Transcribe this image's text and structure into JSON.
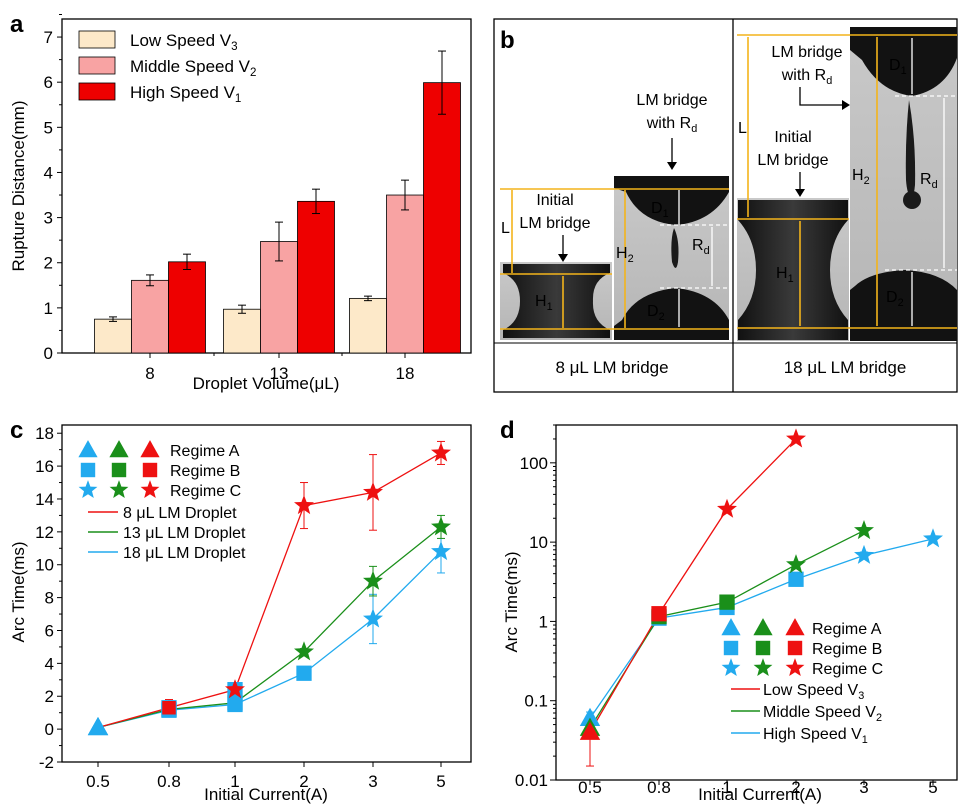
{
  "colors": {
    "low": "#fde9c9",
    "middle": "#f8a3a3",
    "high": "#ee0000",
    "red": "#ee1111",
    "green": "#1a8f1a",
    "blue": "#22aaee",
    "gold": "#f3b41b"
  },
  "chart_data": [
    {
      "panel": "a",
      "type": "bar",
      "xlabel": "Droplet Volume(μL)",
      "ylabel": "Rupture Distance(mm)",
      "ylim": [
        0,
        7.4
      ],
      "yticks": [
        "0",
        "1",
        "2",
        "3",
        "4",
        "5",
        "6",
        "7"
      ],
      "categories": [
        "8",
        "13",
        "18"
      ],
      "series": [
        {
          "name": "Low Speed V",
          "sub": "3",
          "values": [
            0.75,
            0.97,
            1.21
          ],
          "errors": [
            0.05,
            0.09,
            0.05
          ]
        },
        {
          "name": "Middle Speed V",
          "sub": "2",
          "values": [
            1.61,
            2.47,
            3.5
          ],
          "errors": [
            0.12,
            0.43,
            0.33
          ]
        },
        {
          "name": "High Speed V",
          "sub": "1",
          "values": [
            2.02,
            3.36,
            5.99
          ],
          "errors": [
            0.17,
            0.27,
            0.7
          ]
        }
      ],
      "legend": "top-left"
    },
    {
      "panel": "c",
      "type": "line",
      "xlabel": "Initial Current(A)",
      "ylabel": "Arc Time(ms)",
      "xcategories": [
        "0.5",
        "0.8",
        "1",
        "2",
        "3",
        "5"
      ],
      "ylim": [
        -2,
        18.5
      ],
      "yticks": [
        "-2",
        "0",
        "2",
        "4",
        "6",
        "8",
        "10",
        "12",
        "14",
        "16",
        "18"
      ],
      "regimes": [
        "Regime A",
        "Regime B",
        "Regime C"
      ],
      "series": [
        {
          "name": "8 μL LM Droplet",
          "values": [
            0.1,
            1.3,
            2.4,
            13.6,
            14.4,
            16.8
          ],
          "errors": [
            0.1,
            0.5,
            0.2,
            1.4,
            2.3,
            0.7
          ],
          "markers": [
            "A",
            "B",
            "B",
            "C",
            "C",
            "C"
          ]
        },
        {
          "name": "13 μL LM Droplet",
          "values": [
            0.1,
            1.2,
            1.6,
            4.7,
            9.0,
            12.3
          ],
          "errors": [
            0.1,
            0.3,
            0.2,
            0.2,
            0.9,
            0.7
          ],
          "markers": [
            "A",
            "B",
            "B",
            "C",
            "C",
            "C"
          ]
        },
        {
          "name": "18 μL LM Droplet",
          "values": [
            0.1,
            1.15,
            1.5,
            3.4,
            6.7,
            10.8
          ],
          "errors": [
            0.1,
            0.3,
            0.2,
            0.2,
            1.5,
            1.3
          ],
          "markers": [
            "A",
            "B",
            "B",
            "B",
            "C",
            "C"
          ]
        }
      ],
      "legend": "top-left"
    },
    {
      "panel": "d",
      "type": "line",
      "yscale": "log",
      "xlabel": "Initial Current(A)",
      "ylabel": "Arc Time(ms)",
      "xcategories": [
        "0.5",
        "0.8",
        "1",
        "2",
        "3",
        "5"
      ],
      "ylim": [
        0.01,
        300
      ],
      "yticks": [
        "0.01",
        "0.1",
        "1",
        "10",
        "100"
      ],
      "regimes": [
        "Regime A",
        "Regime B",
        "Regime C"
      ],
      "series": [
        {
          "name": "Low Speed V",
          "sub": "3",
          "values": [
            0.04,
            1.25,
            26,
            200,
            null,
            null
          ],
          "errors_low": [
            0.025,
            0.05,
            1,
            0,
            null,
            null
          ],
          "errors_high": [
            0.012,
            0.05,
            1,
            0,
            null,
            null
          ],
          "markers": [
            "A",
            "B",
            "C",
            "C",
            null,
            null
          ]
        },
        {
          "name": "Middle Speed V",
          "sub": "2",
          "values": [
            0.045,
            1.15,
            1.75,
            5.2,
            14,
            null
          ],
          "errors_low": [
            0.01,
            0.05,
            0.1,
            0.3,
            0.5,
            null
          ],
          "errors_high": [
            0.01,
            0.05,
            0.1,
            0.3,
            0.5,
            null
          ],
          "markers": [
            "A",
            "B",
            "B",
            "C",
            "C",
            null
          ]
        },
        {
          "name": "High Speed V",
          "sub": "1",
          "values": [
            0.06,
            1.1,
            1.5,
            3.4,
            6.8,
            11
          ],
          "errors_low": [
            0.008,
            0.05,
            0.1,
            0.2,
            0.5,
            0.4
          ],
          "errors_high": [
            0.012,
            0.05,
            0.1,
            0.2,
            0.7,
            0.4
          ],
          "markers": [
            "A",
            "B",
            "B",
            "B",
            "C",
            "C"
          ]
        }
      ],
      "legend": "bottom-right"
    }
  ],
  "panel_labels": {
    "a": "a",
    "b": "b",
    "c": "c",
    "d": "d"
  },
  "panel_b": {
    "caption_left": "8 μL LM bridge",
    "caption_right": "18 μL LM bridge",
    "initial_l1": "Initial",
    "initial_l2": "LM bridge",
    "rd_l1": "LM bridge",
    "rd_l2": "with R",
    "rd_sub": "d",
    "L": "L",
    "H1": "H",
    "H1_sub": "1",
    "H2": "H",
    "H2_sub": "2",
    "D1": "D",
    "D1_sub": "1",
    "D2": "D",
    "D2_sub": "2",
    "Rd": "R",
    "Rd_sub": "d"
  }
}
